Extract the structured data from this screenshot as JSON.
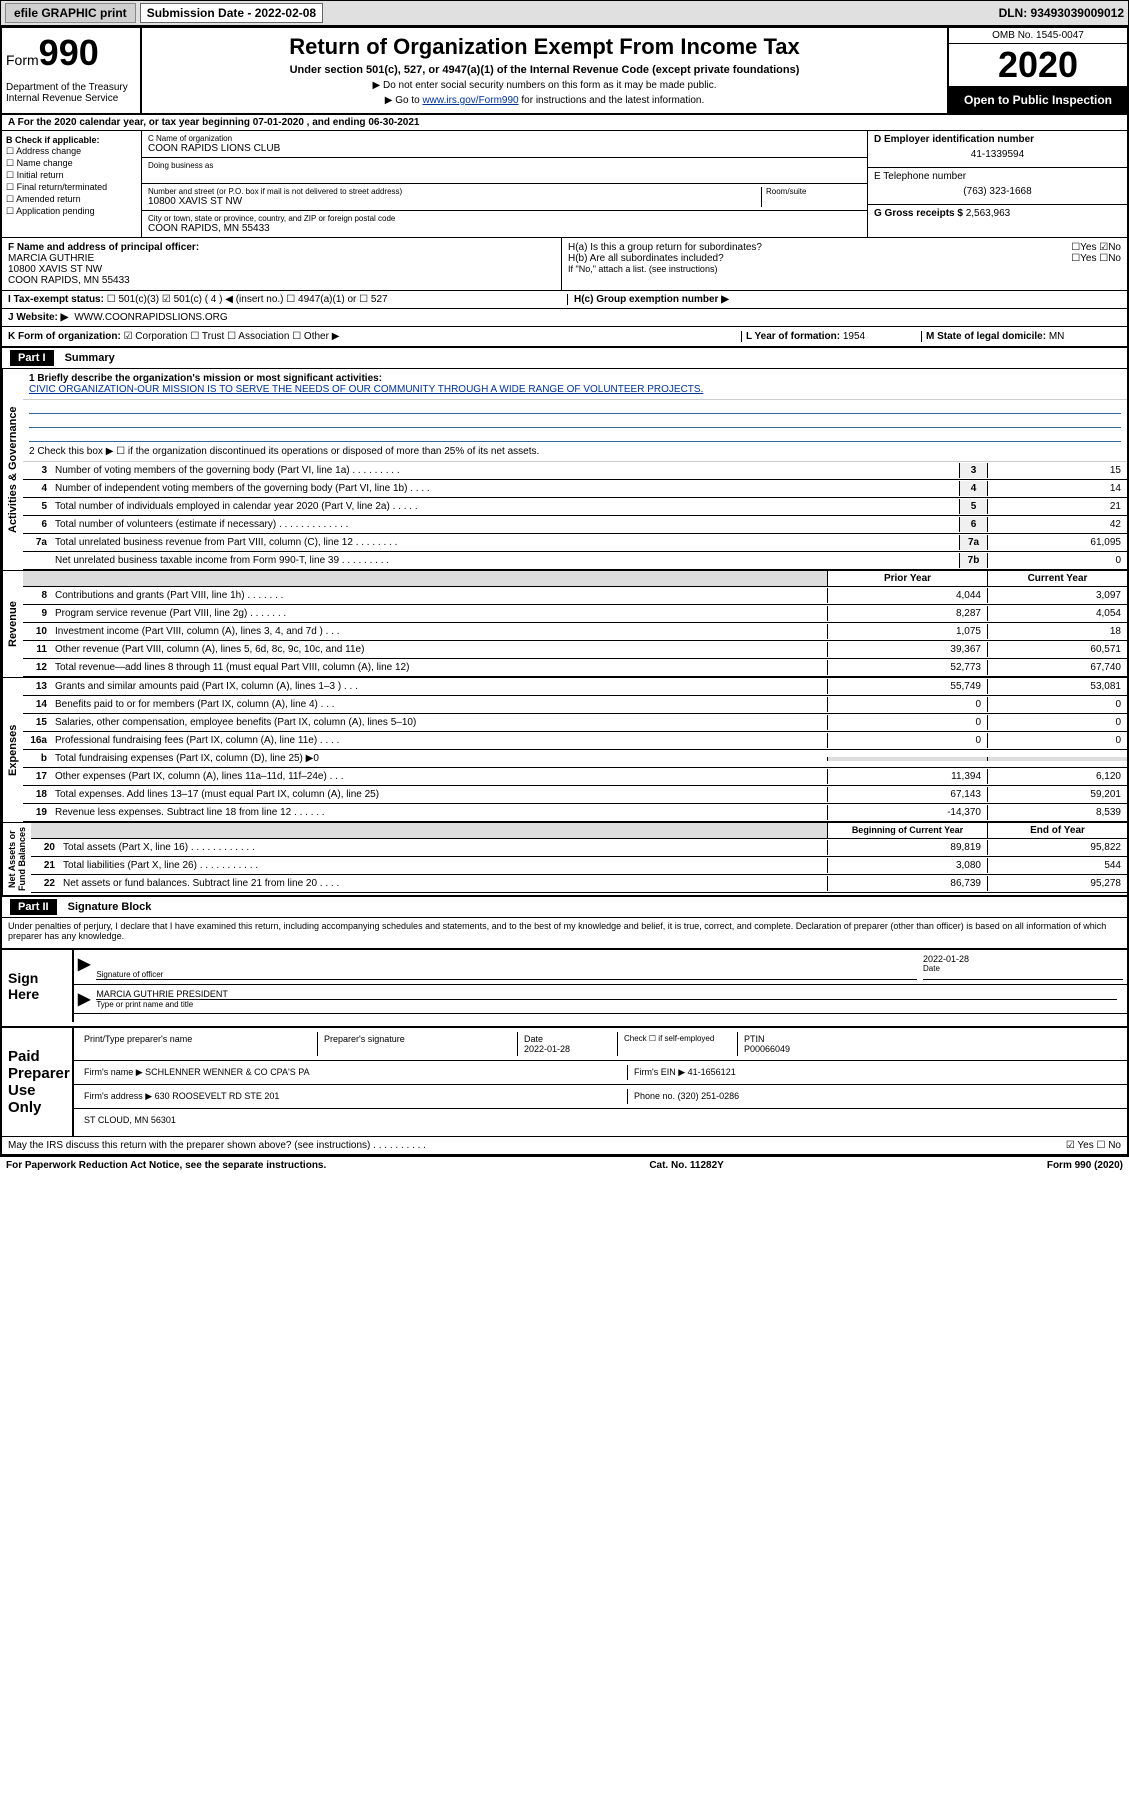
{
  "header": {
    "efile": "efile GRAPHIC print",
    "sub_date_label": "Submission Date - 2022-02-08",
    "dln": "DLN: 93493039009012"
  },
  "top": {
    "form_label": "Form",
    "form_num": "990",
    "dept": "Department of the Treasury\nInternal Revenue Service",
    "title": "Return of Organization Exempt From Income Tax",
    "subtitle": "Under section 501(c), 527, or 4947(a)(1) of the Internal Revenue Code (except private foundations)",
    "instr1": "▶ Do not enter social security numbers on this form as it may be made public.",
    "instr2_pre": "▶ Go to ",
    "instr2_link": "www.irs.gov/Form990",
    "instr2_post": " for instructions and the latest information.",
    "omb": "OMB No. 1545-0047",
    "year": "2020",
    "open_pub": "Open to Public Inspection"
  },
  "row_a": "A For the 2020 calendar year, or tax year beginning 07-01-2020   , and ending 06-30-2021",
  "col_b": {
    "label": "B Check if applicable:",
    "items": [
      "Address change",
      "Name change",
      "Initial return",
      "Final return/terminated",
      "Amended return",
      "Application pending"
    ]
  },
  "col_c": {
    "name_label": "C Name of organization",
    "name": "COON RAPIDS LIONS CLUB",
    "dba_label": "Doing business as",
    "addr_label": "Number and street (or P.O. box if mail is not delivered to street address)",
    "room_label": "Room/suite",
    "addr": "10800 XAVIS ST NW",
    "city_label": "City or town, state or province, country, and ZIP or foreign postal code",
    "city": "COON RAPIDS, MN  55433"
  },
  "col_d": {
    "ein_label": "D Employer identification number",
    "ein": "41-1339594",
    "tel_label": "E Telephone number",
    "tel": "(763) 323-1668",
    "gross_label": "G Gross receipts $",
    "gross": "2,563,963"
  },
  "row_f": {
    "label": "F Name and address of principal officer:",
    "name": "MARCIA GUTHRIE",
    "addr1": "10800 XAVIS ST NW",
    "addr2": "COON RAPIDS, MN  55433"
  },
  "row_h": {
    "ha": "H(a)  Is this a group return for subordinates?",
    "ha_ans": "☐Yes ☑No",
    "hb": "H(b)  Are all subordinates included?",
    "hb_ans": "☐Yes ☐No",
    "hb_note": "If \"No,\" attach a list. (see instructions)",
    "hc": "H(c)  Group exemption number ▶"
  },
  "row_i": {
    "label": "I   Tax-exempt status:",
    "opts": "☐ 501(c)(3)   ☑ 501(c) ( 4 ) ◀ (insert no.)   ☐ 4947(a)(1) or   ☐ 527"
  },
  "row_j": {
    "label": "J   Website: ▶",
    "val": "WWW.COONRAPIDSLIONS.ORG"
  },
  "row_k": {
    "label": "K Form of organization:",
    "opts": "☑ Corporation  ☐ Trust  ☐ Association  ☐ Other ▶",
    "l_label": "L Year of formation:",
    "l_val": "1954",
    "m_label": "M State of legal domicile:",
    "m_val": "MN"
  },
  "part1": {
    "hdr": "Part I",
    "title": "Summary",
    "mission_label": "1   Briefly describe the organization's mission or most significant activities:",
    "mission": "CIVIC ORGANIZATION-OUR MISSION IS TO SERVE THE NEEDS OF OUR COMMUNITY THROUGH A WIDE RANGE OF VOLUNTEER PROJECTS.",
    "line2": "2   Check this box ▶ ☐  if the organization discontinued its operations or disposed of more than 25% of its net assets."
  },
  "gov_lines": [
    {
      "n": "3",
      "d": "Number of voting members of the governing body (Part VI, line 1a)  .   .   .   .   .   .   .   .   .",
      "b": "3",
      "v": "15"
    },
    {
      "n": "4",
      "d": "Number of independent voting members of the governing body (Part VI, line 1b)  .   .   .   .",
      "b": "4",
      "v": "14"
    },
    {
      "n": "5",
      "d": "Total number of individuals employed in calendar year 2020 (Part V, line 2a)  .   .   .   .   .",
      "b": "5",
      "v": "21"
    },
    {
      "n": "6",
      "d": "Total number of volunteers (estimate if necessary)  .   .   .   .   .   .   .   .   .   .   .   .   .",
      "b": "6",
      "v": "42"
    },
    {
      "n": "7a",
      "d": "Total unrelated business revenue from Part VIII, column (C), line 12  .   .   .   .   .   .   .   .",
      "b": "7a",
      "v": "61,095"
    },
    {
      "n": "",
      "d": "Net unrelated business taxable income from Form 990-T, line 39  .   .   .   .   .   .   .   .   .",
      "b": "7b",
      "v": "0"
    }
  ],
  "rev_hdr": {
    "py": "Prior Year",
    "cy": "Current Year"
  },
  "rev_lines": [
    {
      "n": "8",
      "d": "Contributions and grants (Part VIII, line 1h)  .   .   .   .   .   .   .",
      "py": "4,044",
      "cy": "3,097"
    },
    {
      "n": "9",
      "d": "Program service revenue (Part VIII, line 2g)  .   .   .   .   .   .   .",
      "py": "8,287",
      "cy": "4,054"
    },
    {
      "n": "10",
      "d": "Investment income (Part VIII, column (A), lines 3, 4, and 7d )  .   .   .",
      "py": "1,075",
      "cy": "18"
    },
    {
      "n": "11",
      "d": "Other revenue (Part VIII, column (A), lines 5, 6d, 8c, 9c, 10c, and 11e)",
      "py": "39,367",
      "cy": "60,571"
    },
    {
      "n": "12",
      "d": "Total revenue—add lines 8 through 11 (must equal Part VIII, column (A), line 12)",
      "py": "52,773",
      "cy": "67,740"
    }
  ],
  "exp_lines": [
    {
      "n": "13",
      "d": "Grants and similar amounts paid (Part IX, column (A), lines 1–3 )  .   .   .",
      "py": "55,749",
      "cy": "53,081"
    },
    {
      "n": "14",
      "d": "Benefits paid to or for members (Part IX, column (A), line 4)  .   .   .",
      "py": "0",
      "cy": "0"
    },
    {
      "n": "15",
      "d": "Salaries, other compensation, employee benefits (Part IX, column (A), lines 5–10)",
      "py": "0",
      "cy": "0"
    },
    {
      "n": "16a",
      "d": "Professional fundraising fees (Part IX, column (A), line 11e)  .   .   .   .",
      "py": "0",
      "cy": "0"
    },
    {
      "n": "b",
      "d": "Total fundraising expenses (Part IX, column (D), line 25) ▶0",
      "py": "",
      "cy": "",
      "shade": true
    },
    {
      "n": "17",
      "d": "Other expenses (Part IX, column (A), lines 11a–11d, 11f–24e)  .   .   .",
      "py": "11,394",
      "cy": "6,120"
    },
    {
      "n": "18",
      "d": "Total expenses. Add lines 13–17 (must equal Part IX, column (A), line 25)",
      "py": "67,143",
      "cy": "59,201"
    },
    {
      "n": "19",
      "d": "Revenue less expenses. Subtract line 18 from line 12  .   .   .   .   .   .",
      "py": "-14,370",
      "cy": "8,539"
    }
  ],
  "na_hdr": {
    "py": "Beginning of Current Year",
    "cy": "End of Year"
  },
  "na_lines": [
    {
      "n": "20",
      "d": "Total assets (Part X, line 16)  .   .   .   .   .   .   .   .   .   .   .   .",
      "py": "89,819",
      "cy": "95,822"
    },
    {
      "n": "21",
      "d": "Total liabilities (Part X, line 26)  .   .   .   .   .   .   .   .   .   .   .",
      "py": "3,080",
      "cy": "544"
    },
    {
      "n": "22",
      "d": "Net assets or fund balances. Subtract line 21 from line 20  .   .   .   .",
      "py": "86,739",
      "cy": "95,278"
    }
  ],
  "part2": {
    "hdr": "Part II",
    "title": "Signature Block",
    "penalty": "Under penalties of perjury, I declare that I have examined this return, including accompanying schedules and statements, and to the best of my knowledge and belief, it is true, correct, and complete. Declaration of preparer (other than officer) is based on all information of which preparer has any knowledge."
  },
  "sign": {
    "label": "Sign Here",
    "sig_label": "Signature of officer",
    "date_label": "Date",
    "date": "2022-01-28",
    "name": "MARCIA GUTHRIE  PRESIDENT",
    "name_label": "Type or print name and title"
  },
  "paid": {
    "label": "Paid Preparer Use Only",
    "col1": "Print/Type preparer's name",
    "col2": "Preparer's signature",
    "col3": "Date",
    "date": "2022-01-28",
    "col4": "Check ☐ if self-employed",
    "col5_label": "PTIN",
    "col5": "P00066049",
    "firm_label": "Firm's name     ▶",
    "firm": "SCHLENNER WENNER & CO CPA'S PA",
    "ein_label": "Firm's EIN ▶",
    "ein": "41-1656121",
    "addr_label": "Firm's address ▶",
    "addr1": "630 ROOSEVELT RD STE 201",
    "addr2": "ST CLOUD, MN  56301",
    "phone_label": "Phone no.",
    "phone": "(320) 251-0286"
  },
  "discuss": {
    "q": "May the IRS discuss this return with the preparer shown above? (see instructions)  .   .   .   .   .   .   .   .   .   .",
    "ans": "☑ Yes  ☐ No"
  },
  "footer": {
    "left": "For Paperwork Reduction Act Notice, see the separate instructions.",
    "mid": "Cat. No. 11282Y",
    "right": "Form 990 (2020)"
  }
}
